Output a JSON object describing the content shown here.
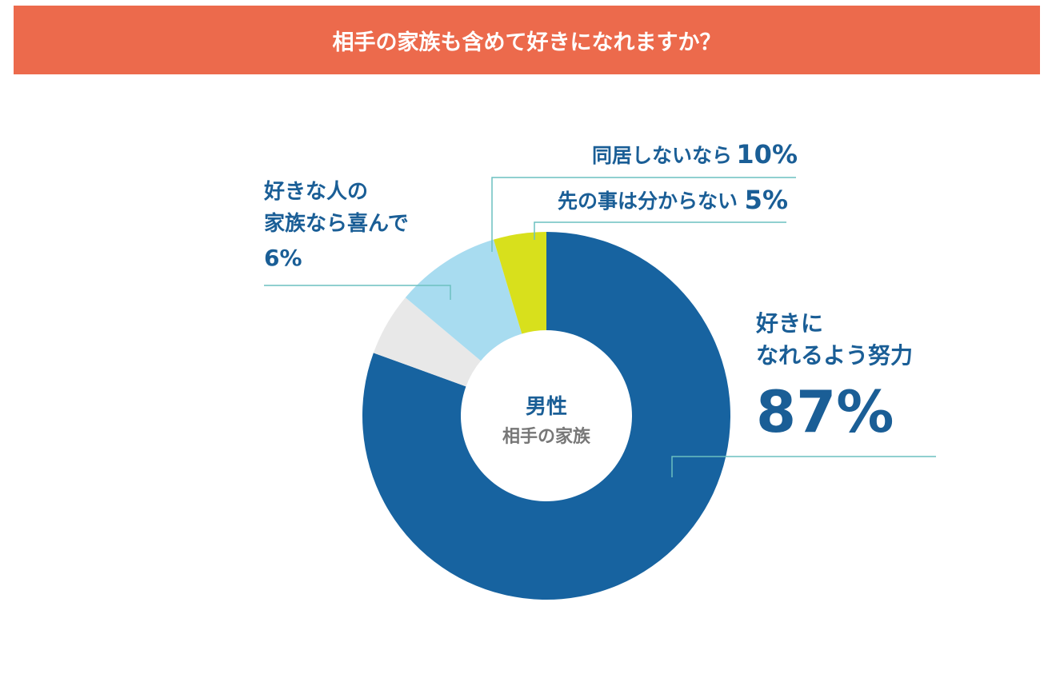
{
  "chart_data": {
    "type": "donut",
    "title": "相手の家族も含めて好きになれますか？",
    "center_label": [
      "男性",
      "相手の家族"
    ],
    "categories": [
      "好きに\nなれるよう努力",
      "好きな人の\n家族なら喜んで",
      "同居しないなら",
      "先の事は分からない"
    ],
    "values": [
      87,
      6,
      10,
      5
    ],
    "value_labels": [
      "87%",
      "6%",
      "10%",
      "5%"
    ],
    "colors": [
      "#1763a0",
      "#e8e8e8",
      "#a8dcf0",
      "#d8e01c"
    ]
  }
}
